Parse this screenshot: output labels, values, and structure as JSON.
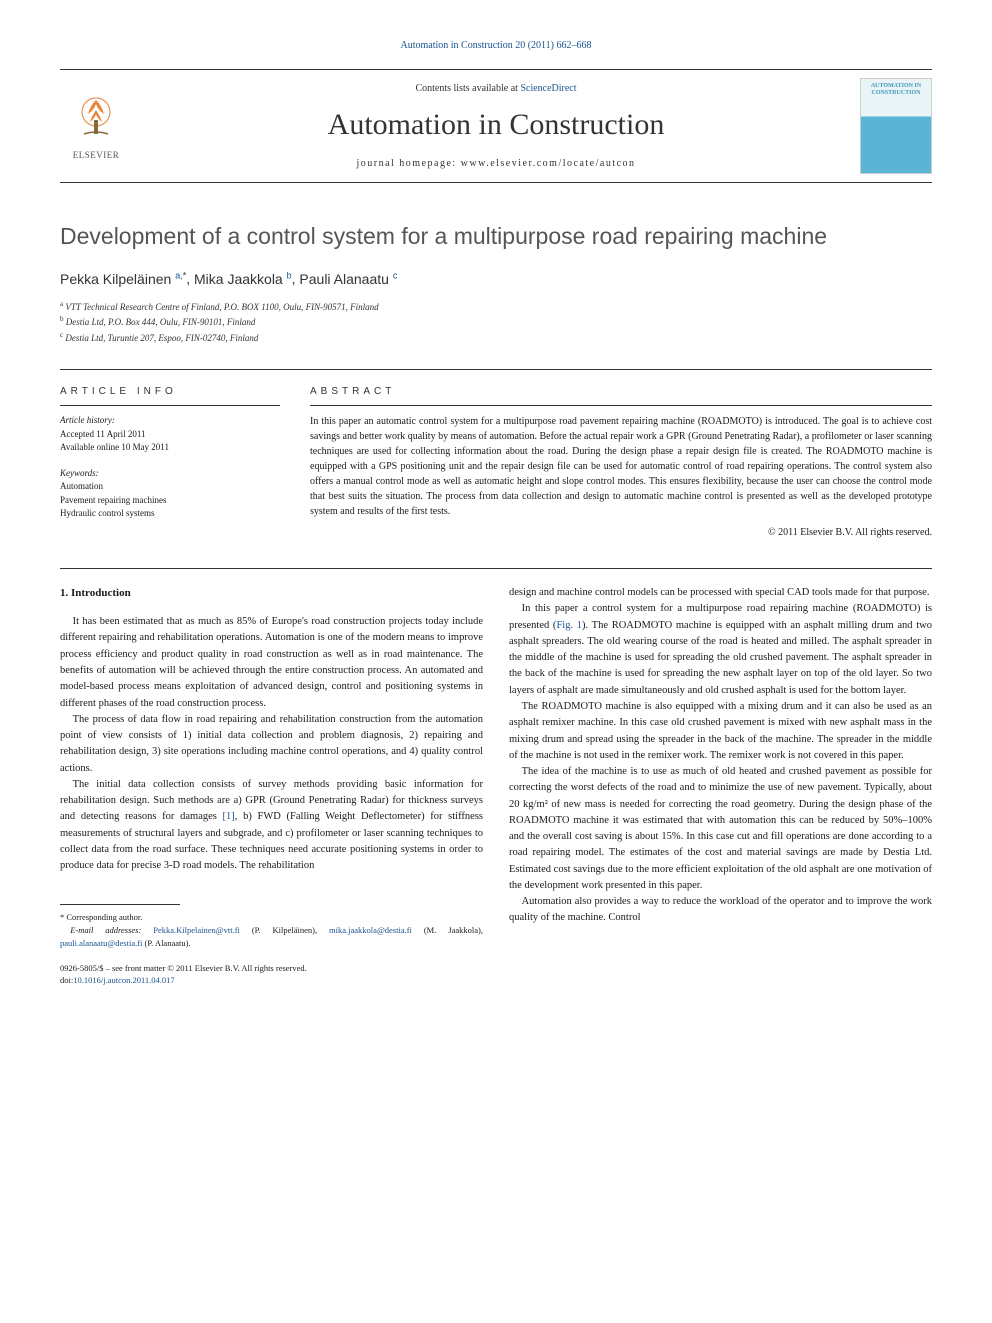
{
  "top_citation": "Automation in Construction 20 (2011) 662–668",
  "header": {
    "contents_prefix": "Contents lists available at ",
    "contents_link": "ScienceDirect",
    "journal_name": "Automation in Construction",
    "homepage_prefix": "journal homepage: ",
    "homepage_url": "www.elsevier.com/locate/autcon",
    "elsevier_text": "ELSEVIER",
    "cover_text": "AUTOMATION IN CONSTRUCTION"
  },
  "title": "Development of a control system for a multipurpose road repairing machine",
  "authors": [
    {
      "name": "Pekka Kilpeläinen",
      "markers": "a,*"
    },
    {
      "name": "Mika Jaakkola",
      "markers": "b"
    },
    {
      "name": "Pauli Alanaatu",
      "markers": "c"
    }
  ],
  "author_string_sep": ", ",
  "affiliations": [
    {
      "marker": "a",
      "text": "VTT Technical Research Centre of Finland, P.O. BOX 1100, Oulu, FIN-90571, Finland"
    },
    {
      "marker": "b",
      "text": "Destia Ltd, P.O. Box 444, Oulu, FIN-90101, Finland"
    },
    {
      "marker": "c",
      "text": "Destia Ltd, Turuntie 207, Espoo, FIN-02740, Finland"
    }
  ],
  "article_info": {
    "header": "ARTICLE INFO",
    "history_label": "Article history:",
    "history_lines": [
      "Accepted 11 April 2011",
      "Available online 10 May 2011"
    ],
    "keywords_label": "Keywords:",
    "keywords": [
      "Automation",
      "Pavement repairing machines",
      "Hydraulic control systems"
    ]
  },
  "abstract": {
    "header": "ABSTRACT",
    "text": "In this paper an automatic control system for a multipurpose road pavement repairing machine (ROADMOTO) is introduced. The goal is to achieve cost savings and better work quality by means of automation. Before the actual repair work a GPR (Ground Penetrating Radar), a profilometer or laser scanning techniques are used for collecting information about the road. During the design phase a repair design file is created. The ROADMOTO machine is equipped with a GPS positioning unit and the repair design file can be used for automatic control of road repairing operations. The control system also offers a manual control mode as well as automatic height and slope control modes. This ensures flexibility, because the user can choose the control mode that best suits the situation. The process from data collection and design to automatic machine control is presented as well as the developed prototype system and results of the first tests.",
    "copyright": "© 2011 Elsevier B.V. All rights reserved."
  },
  "intro": {
    "heading": "1. Introduction",
    "col1_paras": [
      "It has been estimated that as much as 85% of Europe's road construction projects today include different repairing and rehabilitation operations. Automation is one of the modern means to improve process efficiency and product quality in road construction as well as in road maintenance. The benefits of automation will be achieved through the entire construction process. An automated and model-based process means exploitation of advanced design, control and positioning systems in different phases of the road construction process.",
      "The process of data flow in road repairing and rehabilitation construction from the automation point of view consists of 1) initial data collection and problem diagnosis, 2) repairing and rehabilitation design, 3) site operations including machine control operations, and 4) quality control actions.",
      "The initial data collection consists of survey methods providing basic information for rehabilitation design. Such methods are a) GPR (Ground Penetrating Radar) for thickness surveys and detecting reasons for damages [1], b) FWD (Falling Weight Deflectometer) for stiffness measurements of structural layers and subgrade, and c) profilometer or laser scanning techniques to collect data from the road surface. These techniques need accurate positioning systems in order to produce data for precise 3-D road models. The rehabilitation"
    ],
    "col2_paras": [
      "design and machine control models can be processed with special CAD tools made for that purpose.",
      "In this paper a control system for a multipurpose road repairing machine (ROADMOTO) is presented (Fig. 1). The ROADMOTO machine is equipped with an asphalt milling drum and two asphalt spreaders. The old wearing course of the road is heated and milled. The asphalt spreader in the middle of the machine is used for spreading the old crushed pavement. The asphalt spreader in the back of the machine is used for spreading the new asphalt layer on top of the old layer. So two layers of asphalt are made simultaneously and old crushed asphalt is used for the bottom layer.",
      "The ROADMOTO machine is also equipped with a mixing drum and it can also be used as an asphalt remixer machine. In this case old crushed pavement is mixed with new asphalt mass in the mixing drum and spread using the spreader in the back of the machine. The spreader in the middle of the machine is not used in the remixer work. The remixer work is not covered in this paper.",
      "The idea of the machine is to use as much of old heated and crushed pavement as possible for correcting the worst defects of the road and to minimize the use of new pavement. Typically, about 20 kg/m² of new mass is needed for correcting the road geometry. During the design phase of the ROADMOTO machine it was estimated that with automation this can be reduced by 50%–100% and the overall cost saving is about 15%. In this case cut and fill operations are done according to a road repairing model. The estimates of the cost and material savings are made by Destia Ltd. Estimated cost savings due to the more efficient exploitation of the old asphalt are one motivation of the development work presented in this paper.",
      "Automation also provides a way to reduce the workload of the operator and to improve the work quality of the machine. Control"
    ],
    "ref1": "[1]",
    "fig1": "Fig. 1"
  },
  "footnotes": {
    "corresponding": "* Corresponding author.",
    "email_label": "E-mail addresses: ",
    "emails": [
      {
        "addr": "Pekka.Kilpelainen@vtt.fi",
        "who": " (P. Kilpeläinen), "
      },
      {
        "addr": "mika.jaakkola@destia.fi",
        "who": " (M. Jaakkola), "
      },
      {
        "addr": "pauli.alanaatu@destia.fi",
        "who": " (P. Alanaatu)."
      }
    ]
  },
  "frontmatter": {
    "line1": "0926-5805/$ – see front matter © 2011 Elsevier B.V. All rights reserved.",
    "doi_prefix": "doi:",
    "doi": "10.1016/j.autcon.2011.04.017"
  },
  "colors": {
    "link": "#1a5490",
    "text": "#1a1a1a",
    "title_gray": "#555555"
  }
}
